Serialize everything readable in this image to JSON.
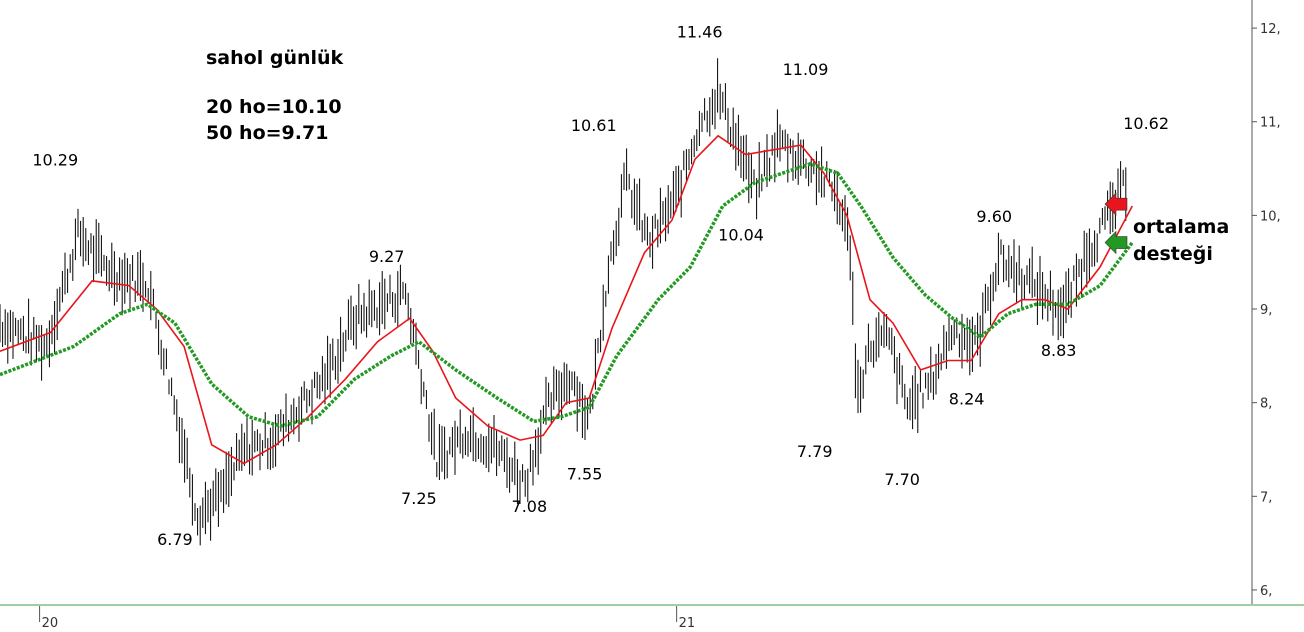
{
  "chart_data": {
    "type": "line",
    "title": "sahol günlük",
    "notes": [
      "20 ho=10.10",
      "50 ho=9.71"
    ],
    "side_label": [
      "ortalama",
      "desteği"
    ],
    "y_ticks": [
      "6,",
      "7,",
      "8,",
      "9,",
      "10,",
      "11,",
      "12,"
    ],
    "ylim": [
      5.85,
      12.3
    ],
    "x_ticks": [
      {
        "label": "20",
        "x": 0.18
      },
      {
        "label": "21",
        "x": 7.1
      }
    ],
    "xlim": [
      -0.25,
      13.35
    ],
    "price_points": [
      [
        -0.25,
        8.85
      ],
      [
        0.25,
        8.6
      ],
      [
        0.6,
        9.8
      ],
      [
        0.85,
        9.5
      ],
      [
        1.05,
        9.35
      ],
      [
        1.35,
        9.3
      ],
      [
        1.6,
        8.2
      ],
      [
        1.9,
        6.8
      ],
      [
        2.15,
        7.0
      ],
      [
        2.4,
        7.5
      ],
      [
        2.7,
        7.6
      ],
      [
        3.0,
        7.95
      ],
      [
        3.3,
        8.3
      ],
      [
        3.6,
        8.9
      ],
      [
        3.9,
        9.05
      ],
      [
        4.15,
        9.2
      ],
      [
        4.3,
        8.45
      ],
      [
        4.5,
        7.35
      ],
      [
        4.8,
        7.7
      ],
      [
        5.1,
        7.55
      ],
      [
        5.45,
        7.15
      ],
      [
        5.7,
        7.95
      ],
      [
        5.95,
        8.3
      ],
      [
        6.15,
        7.8
      ],
      [
        6.35,
        9.4
      ],
      [
        6.55,
        10.4
      ],
      [
        6.8,
        9.7
      ],
      [
        7.1,
        10.2
      ],
      [
        7.35,
        11.0
      ],
      [
        7.55,
        11.3
      ],
      [
        7.75,
        10.8
      ],
      [
        7.95,
        10.25
      ],
      [
        8.2,
        10.8
      ],
      [
        8.45,
        10.6
      ],
      [
        8.65,
        10.45
      ],
      [
        8.85,
        10.2
      ],
      [
        9.0,
        9.6
      ],
      [
        9.05,
        8.05
      ],
      [
        9.2,
        8.6
      ],
      [
        9.4,
        8.7
      ],
      [
        9.6,
        7.95
      ],
      [
        9.85,
        8.2
      ],
      [
        10.1,
        8.8
      ],
      [
        10.35,
        8.6
      ],
      [
        10.6,
        9.55
      ],
      [
        10.85,
        9.35
      ],
      [
        11.05,
        9.2
      ],
      [
        11.3,
        8.95
      ],
      [
        11.55,
        9.6
      ],
      [
        11.8,
        10.0
      ],
      [
        12.0,
        10.4
      ]
    ],
    "series": [
      {
        "name": "20 ho",
        "color": "#e8161c",
        "style": "solid",
        "points": [
          [
            -0.25,
            8.55
          ],
          [
            0.3,
            8.75
          ],
          [
            0.75,
            9.3
          ],
          [
            1.15,
            9.25
          ],
          [
            1.45,
            9.0
          ],
          [
            1.75,
            8.6
          ],
          [
            2.05,
            7.55
          ],
          [
            2.4,
            7.35
          ],
          [
            2.75,
            7.55
          ],
          [
            3.1,
            7.85
          ],
          [
            3.5,
            8.25
          ],
          [
            3.85,
            8.65
          ],
          [
            4.2,
            8.9
          ],
          [
            4.45,
            8.55
          ],
          [
            4.7,
            8.05
          ],
          [
            5.05,
            7.75
          ],
          [
            5.4,
            7.6
          ],
          [
            5.65,
            7.65
          ],
          [
            5.9,
            8.0
          ],
          [
            6.15,
            8.05
          ],
          [
            6.4,
            8.8
          ],
          [
            6.75,
            9.6
          ],
          [
            7.05,
            9.95
          ],
          [
            7.3,
            10.6
          ],
          [
            7.55,
            10.85
          ],
          [
            7.85,
            10.65
          ],
          [
            8.15,
            10.7
          ],
          [
            8.45,
            10.75
          ],
          [
            8.7,
            10.45
          ],
          [
            8.95,
            10.0
          ],
          [
            9.2,
            9.1
          ],
          [
            9.45,
            8.85
          ],
          [
            9.75,
            8.35
          ],
          [
            10.05,
            8.45
          ],
          [
            10.3,
            8.45
          ],
          [
            10.6,
            8.95
          ],
          [
            10.85,
            9.1
          ],
          [
            11.1,
            9.1
          ],
          [
            11.35,
            9.0
          ],
          [
            11.7,
            9.45
          ],
          [
            12.05,
            10.1
          ]
        ]
      },
      {
        "name": "50 ho",
        "color": "#229922",
        "style": "dotted",
        "points": [
          [
            -0.25,
            8.3
          ],
          [
            0.55,
            8.6
          ],
          [
            1.05,
            8.95
          ],
          [
            1.35,
            9.05
          ],
          [
            1.65,
            8.85
          ],
          [
            2.05,
            8.2
          ],
          [
            2.45,
            7.85
          ],
          [
            2.8,
            7.75
          ],
          [
            3.2,
            7.85
          ],
          [
            3.6,
            8.25
          ],
          [
            4.0,
            8.5
          ],
          [
            4.3,
            8.65
          ],
          [
            4.7,
            8.35
          ],
          [
            5.15,
            8.05
          ],
          [
            5.55,
            7.8
          ],
          [
            5.85,
            7.85
          ],
          [
            6.15,
            7.95
          ],
          [
            6.45,
            8.5
          ],
          [
            6.9,
            9.1
          ],
          [
            7.25,
            9.45
          ],
          [
            7.6,
            10.1
          ],
          [
            7.95,
            10.35
          ],
          [
            8.25,
            10.45
          ],
          [
            8.55,
            10.55
          ],
          [
            8.85,
            10.45
          ],
          [
            9.1,
            10.1
          ],
          [
            9.45,
            9.55
          ],
          [
            9.8,
            9.15
          ],
          [
            10.1,
            8.9
          ],
          [
            10.4,
            8.7
          ],
          [
            10.7,
            8.95
          ],
          [
            11.0,
            9.05
          ],
          [
            11.35,
            9.05
          ],
          [
            11.7,
            9.25
          ],
          [
            12.05,
            9.71
          ]
        ]
      }
    ],
    "labels": [
      {
        "text": "10.29",
        "x": 0.35,
        "y": 10.53
      },
      {
        "text": "6.79",
        "x": 1.65,
        "y": 6.48
      },
      {
        "text": "9.27",
        "x": 3.95,
        "y": 9.5
      },
      {
        "text": "7.25",
        "x": 4.3,
        "y": 6.92
      },
      {
        "text": "7.08",
        "x": 5.5,
        "y": 6.83
      },
      {
        "text": "7.55",
        "x": 6.1,
        "y": 7.18
      },
      {
        "text": "10.61",
        "x": 6.2,
        "y": 10.9
      },
      {
        "text": "11.46",
        "x": 7.35,
        "y": 11.9
      },
      {
        "text": "11.09",
        "x": 8.5,
        "y": 11.5
      },
      {
        "text": "10.04",
        "x": 7.8,
        "y": 9.73
      },
      {
        "text": "7.79",
        "x": 8.6,
        "y": 7.42
      },
      {
        "text": "7.70",
        "x": 9.55,
        "y": 7.12
      },
      {
        "text": "8.24",
        "x": 10.25,
        "y": 7.98
      },
      {
        "text": "9.60",
        "x": 10.55,
        "y": 9.93
      },
      {
        "text": "8.83",
        "x": 11.25,
        "y": 8.5
      },
      {
        "text": "10.62",
        "x": 12.2,
        "y": 10.92
      }
    ],
    "arrows": [
      {
        "name": "red-arrow",
        "color": "#e8161c",
        "y": 10.12
      },
      {
        "name": "green-arrow",
        "color": "#229922",
        "y": 9.71
      }
    ],
    "grid": false
  }
}
